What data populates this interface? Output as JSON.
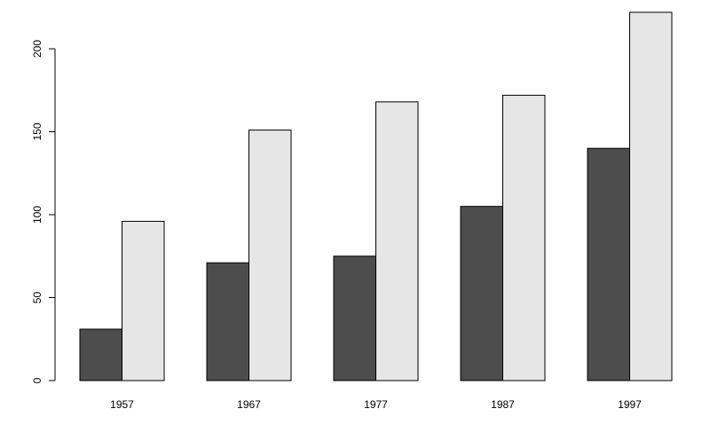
{
  "chart_data": {
    "type": "bar",
    "categories": [
      "1957",
      "1967",
      "1977",
      "1987",
      "1997"
    ],
    "series": [
      {
        "values": [
          31,
          71,
          75,
          105,
          140
        ]
      },
      {
        "values": [
          96,
          151,
          168,
          172,
          222
        ]
      }
    ],
    "y_ticks": [
      "0",
      "50",
      "100",
      "150",
      "200"
    ],
    "ylim": [
      0,
      222
    ],
    "grid": false,
    "title": "",
    "xlabel": "",
    "ylabel": ""
  },
  "colors": {
    "series_fills": [
      "#4d4d4d",
      "#e6e6e6"
    ],
    "bar_stroke": "#000000",
    "axis": "#000000"
  }
}
